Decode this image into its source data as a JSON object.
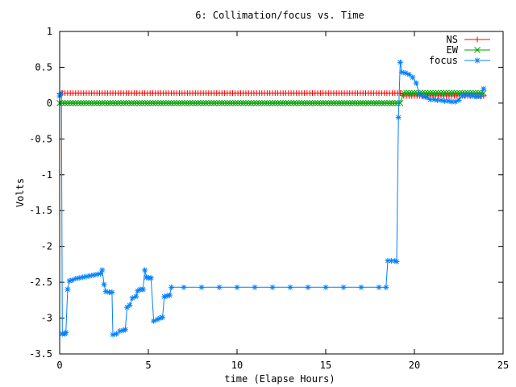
{
  "chart_data": {
    "type": "line",
    "title": "6: Collimation/focus vs. Time",
    "xlabel": "time (Elapse Hours)",
    "ylabel": "Volts",
    "xlim": [
      0,
      25
    ],
    "ylim": [
      -3.5,
      1
    ],
    "x_ticks": [
      0,
      5,
      10,
      15,
      20,
      25
    ],
    "x_tick_labels": [
      "0",
      "5",
      "10",
      "15",
      "20",
      "25"
    ],
    "y_ticks": [
      1,
      0.5,
      0,
      -0.5,
      -1,
      -1.5,
      -2,
      -2.5,
      -3,
      -3.5
    ],
    "y_tick_labels": [
      "1",
      "0.5",
      "0",
      "-0.5",
      "-1",
      "-1.5",
      "-2",
      "-2.5",
      "-3",
      "-3.5"
    ],
    "legend_position": "top-right",
    "series": [
      {
        "name": "NS",
        "color": "#ff0000",
        "marker": "plus",
        "segments": [
          {
            "from": 0,
            "to": 19.3,
            "step": 0.15,
            "value": 0.14
          },
          {
            "from": 19.4,
            "to": 23.9,
            "step": 0.15,
            "value": 0.1
          }
        ]
      },
      {
        "name": "EW",
        "color": "#00a000",
        "marker": "cross",
        "segments": [
          {
            "from": 0,
            "to": 19.3,
            "step": 0.15,
            "value": 0.0
          },
          {
            "from": 19.4,
            "to": 23.9,
            "step": 0.15,
            "value": 0.14
          }
        ]
      },
      {
        "name": "focus",
        "color": "#0080ff",
        "marker": "star",
        "points": [
          [
            0,
            0.1
          ],
          [
            0.1,
            0.14
          ],
          [
            0.15,
            -3.22
          ],
          [
            0.3,
            -3.22
          ],
          [
            0.35,
            -3.2
          ],
          [
            0.45,
            -2.6
          ],
          [
            0.55,
            -2.48
          ],
          [
            0.7,
            -2.47
          ],
          [
            0.9,
            -2.45
          ],
          [
            1.1,
            -2.44
          ],
          [
            1.3,
            -2.43
          ],
          [
            1.5,
            -2.42
          ],
          [
            1.7,
            -2.41
          ],
          [
            1.9,
            -2.4
          ],
          [
            2.1,
            -2.39
          ],
          [
            2.3,
            -2.38
          ],
          [
            2.4,
            -2.33
          ],
          [
            2.5,
            -2.53
          ],
          [
            2.6,
            -2.63
          ],
          [
            2.8,
            -2.64
          ],
          [
            2.95,
            -2.64
          ],
          [
            3.0,
            -3.23
          ],
          [
            3.2,
            -3.22
          ],
          [
            3.4,
            -3.18
          ],
          [
            3.6,
            -3.17
          ],
          [
            3.7,
            -3.16
          ],
          [
            3.8,
            -2.85
          ],
          [
            3.95,
            -2.82
          ],
          [
            4.1,
            -2.72
          ],
          [
            4.3,
            -2.7
          ],
          [
            4.4,
            -2.62
          ],
          [
            4.55,
            -2.6
          ],
          [
            4.7,
            -2.6
          ],
          [
            4.8,
            -2.33
          ],
          [
            4.9,
            -2.43
          ],
          [
            5.0,
            -2.44
          ],
          [
            5.15,
            -2.44
          ],
          [
            5.3,
            -3.04
          ],
          [
            5.5,
            -3.02
          ],
          [
            5.65,
            -3.0
          ],
          [
            5.8,
            -2.99
          ],
          [
            5.9,
            -2.7
          ],
          [
            6.05,
            -2.69
          ],
          [
            6.2,
            -2.68
          ],
          [
            6.3,
            -2.57
          ],
          [
            7,
            -2.57
          ],
          [
            8,
            -2.57
          ],
          [
            9,
            -2.57
          ],
          [
            10,
            -2.57
          ],
          [
            11,
            -2.57
          ],
          [
            12,
            -2.57
          ],
          [
            13,
            -2.57
          ],
          [
            14,
            -2.57
          ],
          [
            15,
            -2.57
          ],
          [
            16,
            -2.57
          ],
          [
            17,
            -2.57
          ],
          [
            18,
            -2.57
          ],
          [
            18.4,
            -2.57
          ],
          [
            18.5,
            -2.2
          ],
          [
            18.7,
            -2.2
          ],
          [
            18.9,
            -2.2
          ],
          [
            19.0,
            -2.21
          ],
          [
            19.1,
            -0.2
          ],
          [
            19.2,
            0.57
          ],
          [
            19.3,
            0.43
          ],
          [
            19.5,
            0.42
          ],
          [
            19.7,
            0.4
          ],
          [
            19.9,
            0.36
          ],
          [
            20.1,
            0.28
          ],
          [
            20.3,
            0.12
          ],
          [
            20.5,
            0.09
          ],
          [
            20.7,
            0.08
          ],
          [
            20.9,
            0.05
          ],
          [
            21.1,
            0.05
          ],
          [
            21.3,
            0.04
          ],
          [
            21.5,
            0.04
          ],
          [
            21.7,
            0.03
          ],
          [
            21.9,
            0.03
          ],
          [
            22.1,
            0.02
          ],
          [
            22.3,
            0.02
          ],
          [
            22.5,
            0.04
          ],
          [
            22.7,
            0.1
          ],
          [
            22.9,
            0.11
          ],
          [
            23.1,
            0.11
          ],
          [
            23.3,
            0.1
          ],
          [
            23.5,
            0.09
          ],
          [
            23.7,
            0.09
          ],
          [
            23.9,
            0.2
          ]
        ]
      }
    ]
  }
}
